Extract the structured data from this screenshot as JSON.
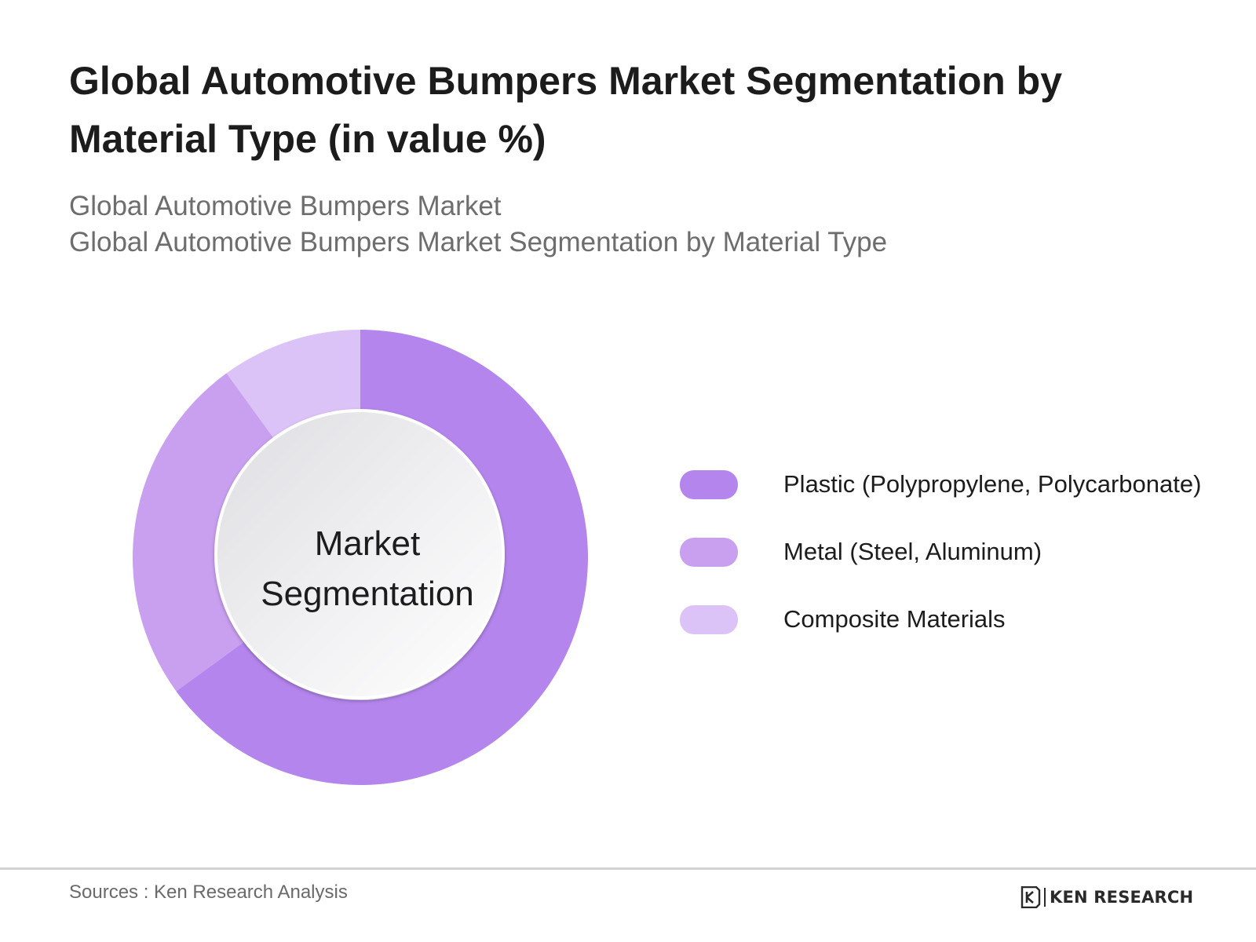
{
  "header": {
    "title": "Global Automotive Bumpers Market Segmentation by Material Type (in value %)",
    "subtitle_line1": "Global Automotive Bumpers Market",
    "subtitle_line2": "Global Automotive Bumpers Market Segmentation by Material Type"
  },
  "center_label": {
    "line1": "Market",
    "line2": "Segmentation"
  },
  "chart_data": {
    "type": "pie",
    "variant": "donut",
    "title": "Global Automotive Bumpers Market Segmentation by Material Type (in value %)",
    "labels": [
      "Plastic (Polypropylene, Polycarbonate)",
      "Metal (Steel, Aluminum)",
      "Composite Materials"
    ],
    "values": [
      65,
      25,
      10
    ],
    "unit": "%",
    "colors": [
      "#b485ec",
      "#c99ff0",
      "#dcc3f7"
    ],
    "legend_position": "right",
    "data_labels_shown": false
  },
  "footer": {
    "source": "Sources : Ken Research Analysis",
    "brand": "KEN RESEARCH"
  }
}
